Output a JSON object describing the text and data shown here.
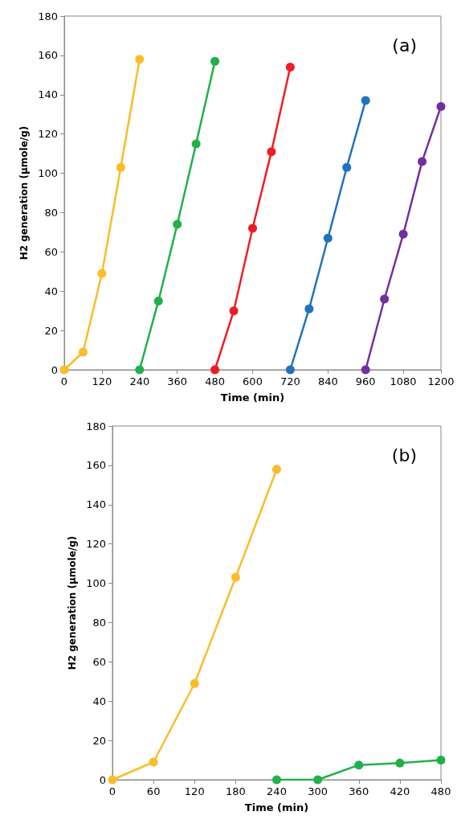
{
  "chart_data": [
    {
      "type": "line",
      "xlabel": "Time (min)",
      "ylabel": "H2 generation (µmole/g)",
      "annotations": [
        "(a)"
      ],
      "xlim": [
        0,
        1200
      ],
      "xticks": [
        0,
        120,
        240,
        360,
        480,
        600,
        720,
        840,
        960,
        1080,
        1200
      ],
      "ylim": [
        0,
        180
      ],
      "yticks": [
        0,
        20,
        40,
        60,
        80,
        100,
        120,
        140,
        160,
        180
      ],
      "marker": "circle",
      "line_style": "solid",
      "series": [
        {
          "color": "#fbbc2a",
          "x": [
            0,
            60,
            120,
            180,
            240
          ],
          "values": [
            0,
            9,
            49,
            103,
            158
          ]
        },
        {
          "color": "#22b04b",
          "x": [
            240,
            300,
            360,
            420,
            480
          ],
          "values": [
            0,
            35,
            74,
            115,
            157
          ]
        },
        {
          "color": "#f01c24",
          "x": [
            480,
            540,
            600,
            660,
            720
          ],
          "values": [
            0,
            30,
            72,
            111,
            154
          ]
        },
        {
          "color": "#1f72be",
          "x": [
            720,
            780,
            840,
            900,
            960
          ],
          "values": [
            0,
            31,
            67,
            103,
            137
          ]
        },
        {
          "color": "#7030a0",
          "x": [
            960,
            1020,
            1080,
            1140,
            1200
          ],
          "values": [
            0,
            36,
            69,
            106,
            134
          ]
        }
      ]
    },
    {
      "type": "line",
      "xlabel": "Time (min)",
      "ylabel": "H2 generation (µmole/g)",
      "annotations": [
        "(b)"
      ],
      "xlim": [
        0,
        480
      ],
      "xticks": [
        0,
        60,
        120,
        180,
        240,
        300,
        360,
        420,
        480
      ],
      "ylim": [
        0,
        180
      ],
      "yticks": [
        0,
        20,
        40,
        60,
        80,
        100,
        120,
        140,
        160,
        180
      ],
      "marker": "circle",
      "line_style": "solid",
      "series": [
        {
          "color": "#fbbc2a",
          "x": [
            0,
            60,
            120,
            180,
            240
          ],
          "values": [
            0,
            9,
            49,
            103,
            158
          ]
        },
        {
          "color": "#22b04b",
          "x": [
            240,
            300,
            360,
            420,
            480
          ],
          "values": [
            0,
            0,
            7.5,
            8.5,
            10
          ]
        }
      ]
    }
  ]
}
